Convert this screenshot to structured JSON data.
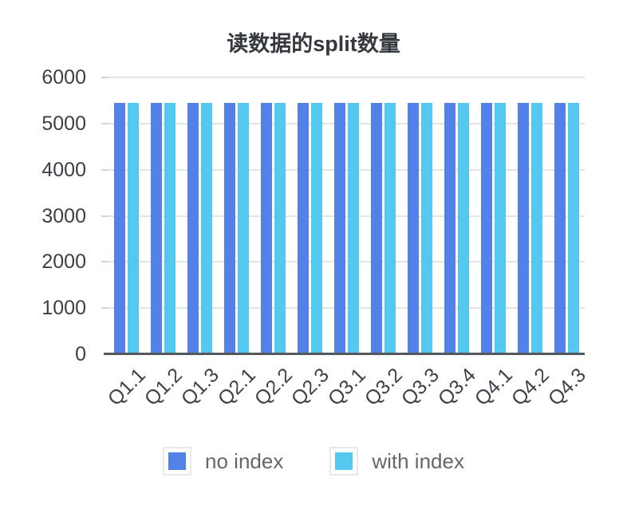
{
  "page": {
    "background_color": "#ffffff"
  },
  "chart_data": {
    "type": "bar",
    "title": "读数据的split数量",
    "xlabel": "",
    "ylabel": "",
    "categories": [
      "Q1.1",
      "Q1.2",
      "Q1.3",
      "Q2.1",
      "Q2.2",
      "Q2.3",
      "Q3.1",
      "Q3.2",
      "Q3.3",
      "Q3.4",
      "Q4.1",
      "Q4.2",
      "Q4.3"
    ],
    "series": [
      {
        "name": "no index",
        "color": "#5282e9",
        "values": [
          5450,
          5450,
          5450,
          5450,
          5450,
          5450,
          5450,
          5450,
          5450,
          5450,
          5450,
          5450,
          5450
        ]
      },
      {
        "name": "with index",
        "color": "#55c8ef",
        "values": [
          5450,
          5450,
          5450,
          5450,
          5450,
          5450,
          5450,
          5450,
          5450,
          5450,
          5450,
          5450,
          5450
        ]
      }
    ],
    "ylim": [
      0,
      6000
    ],
    "ytick_step": 1000,
    "ytick_labels": [
      "0",
      "1000",
      "2000",
      "3000",
      "4000",
      "5000",
      "6000"
    ],
    "grid": true,
    "gridline_color": "#e4e4e4",
    "axis_line_color": "#54575c",
    "legend_position": "bottom"
  }
}
